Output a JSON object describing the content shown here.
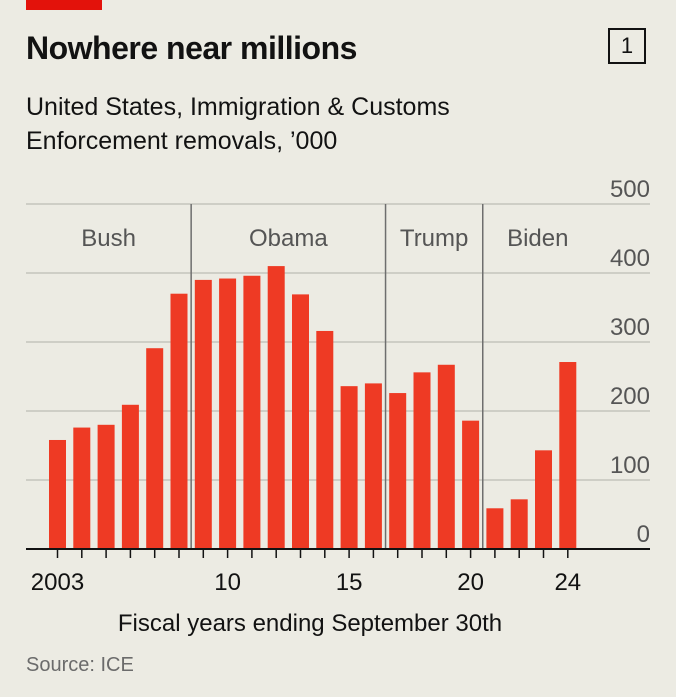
{
  "header": {
    "title": "Nowhere near millions",
    "chart_number": "1",
    "subtitle": "United States, Immigration & Customs Enforcement removals, ’000"
  },
  "footer": {
    "source": "Source: ICE"
  },
  "colors": {
    "bar": "#ee3a24",
    "accent": "#e3120b",
    "background": "#ecebe3",
    "gridline": "#bdbdb5",
    "divider": "#6e6e6e",
    "text": "#121212",
    "muted": "#555555"
  },
  "chart_data": {
    "type": "bar",
    "title": "Nowhere near millions",
    "subtitle": "United States, Immigration & Customs Enforcement removals, ’000",
    "xlabel": "Fiscal years ending September 30th",
    "ylabel": "",
    "ylim": [
      0,
      500
    ],
    "y_ticks": [
      0,
      100,
      200,
      300,
      400,
      500
    ],
    "y_axis_side": "right",
    "grid": true,
    "categories": [
      2003,
      2004,
      2005,
      2006,
      2007,
      2008,
      2009,
      2010,
      2011,
      2012,
      2013,
      2014,
      2015,
      2016,
      2017,
      2018,
      2019,
      2020,
      2021,
      2022,
      2023,
      2024
    ],
    "x_tick_labels": [
      {
        "year": 2003,
        "label": "2003"
      },
      {
        "year": 2010,
        "label": "10"
      },
      {
        "year": 2015,
        "label": "15"
      },
      {
        "year": 2020,
        "label": "20"
      },
      {
        "year": 2024,
        "label": "24"
      }
    ],
    "values": [
      158,
      176,
      180,
      209,
      291,
      370,
      390,
      392,
      396,
      410,
      369,
      316,
      236,
      240,
      226,
      256,
      267,
      186,
      59,
      72,
      143,
      271
    ],
    "periods": [
      {
        "label": "Bush",
        "start": 2003,
        "end": 2008
      },
      {
        "label": "Obama",
        "start": 2009,
        "end": 2016
      },
      {
        "label": "Trump",
        "start": 2017,
        "end": 2020
      },
      {
        "label": "Biden",
        "start": 2021,
        "end": 2024
      }
    ]
  }
}
